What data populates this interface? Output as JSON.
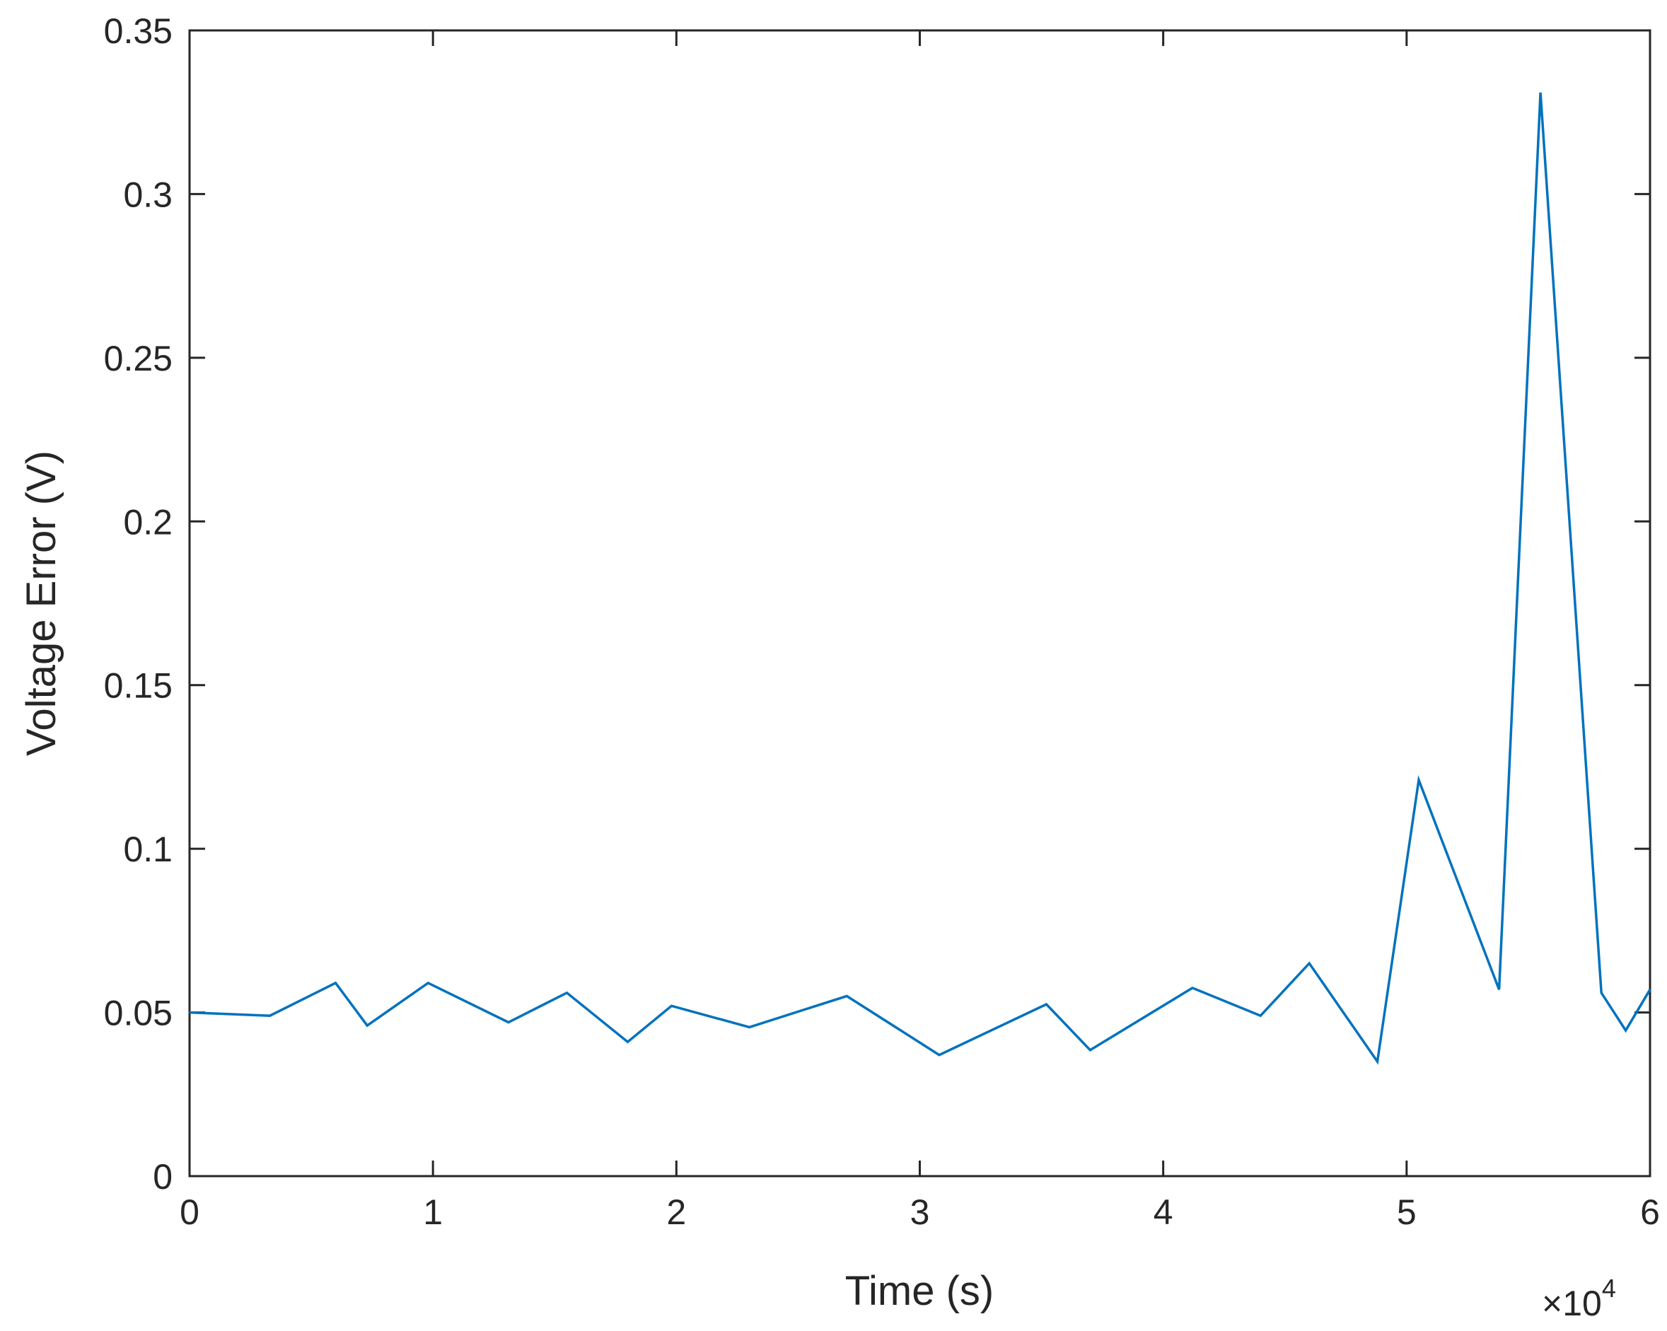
{
  "chart_data": {
    "type": "line",
    "title": "",
    "xlabel": "Time (s)",
    "ylabel": "Voltage Error (V)",
    "x_multiplier_label": "×10",
    "x_multiplier_exponent": "4",
    "xlim": [
      0,
      6
    ],
    "ylim": [
      0,
      0.35
    ],
    "x_ticks": [
      "0",
      "1",
      "2",
      "3",
      "4",
      "5",
      "6"
    ],
    "y_ticks": [
      "0",
      "0.05",
      "0.1",
      "0.15",
      "0.2",
      "0.25",
      "0.3",
      "0.35"
    ],
    "x_tick_values": [
      0,
      1,
      2,
      3,
      4,
      5,
      6
    ],
    "y_tick_values": [
      0,
      0.05,
      0.1,
      0.15,
      0.2,
      0.25,
      0.3,
      0.35
    ],
    "grid": false,
    "line_color": "#0072BD",
    "series": [
      {
        "x": [
          0,
          0.33,
          0.6,
          0.73,
          0.98,
          1.31,
          1.55,
          1.8,
          1.98,
          2.3,
          2.7,
          3.08,
          3.52,
          3.7,
          4.12,
          4.4,
          4.6,
          4.88,
          5.05,
          5.38,
          5.55,
          5.8,
          5.9,
          6.0
        ],
        "y": [
          0.05,
          0.049,
          0.059,
          0.046,
          0.059,
          0.047,
          0.056,
          0.041,
          0.052,
          0.0455,
          0.055,
          0.037,
          0.0525,
          0.0385,
          0.0575,
          0.049,
          0.065,
          0.035,
          0.121,
          0.057,
          0.331,
          0.056,
          0.0445,
          0.057
        ]
      }
    ]
  }
}
